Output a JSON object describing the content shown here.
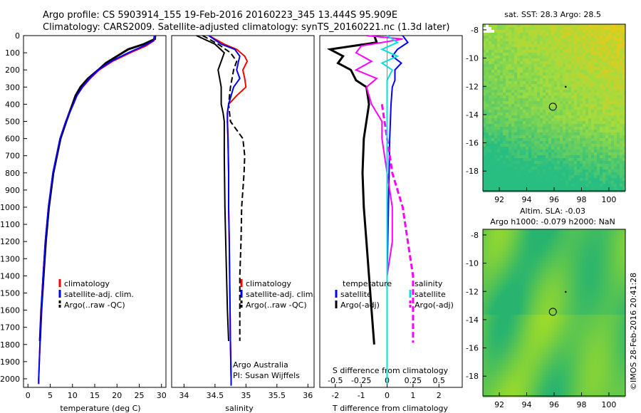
{
  "header": {
    "line1": "Argo profile: CS 5903914_155 19-Feb-2016 20160223_345 13.444S 95.909E",
    "line2": "Climatology: CARS2009. Satellite-adjusted climatology: synTS_20160221.nc (1.3d later)"
  },
  "depth_ticks": [
    "0",
    "100",
    "200",
    "300",
    "400",
    "500",
    "600",
    "700",
    "800",
    "900",
    "1000",
    "1100",
    "1200",
    "1300",
    "1400",
    "1500",
    "1600",
    "1700",
    "1800",
    "1900",
    "2000"
  ],
  "side_label": "©IMOS 28-Feb-2016 20:41:28",
  "panels": {
    "temperature": {
      "xlabel": "temperature (deg C)",
      "xticks": [
        "0",
        "5",
        "10",
        "15",
        "20",
        "25",
        "30"
      ],
      "legend": [
        "climatology",
        "satellite-adj. clim.",
        "Argo(..raw -QC)"
      ]
    },
    "salinity": {
      "xlabel": "salinity",
      "xticks": [
        "34",
        "34.5",
        "35",
        "35.5",
        "36"
      ],
      "legend": [
        "climatology",
        "satellite-adj. clim.",
        "Argo(..raw -QC)"
      ],
      "note1": "Argo Australia",
      "note2": "PI: Susan Wijffels"
    },
    "difference": {
      "xlabel": "T difference from climatology",
      "xlabel_top": "S difference from climatology",
      "xticks_T": [
        "-2",
        "-1",
        "0",
        "1",
        "2"
      ],
      "xticks_S": [
        "-0.5",
        "-0.25",
        "0",
        "0.25",
        "0.5"
      ],
      "legend_T_title": "temperature",
      "legend_S_title": "salinity",
      "legend_T": [
        "satellite",
        "Argo(-adj)"
      ],
      "legend_S": [
        "satellite",
        "Argo(-adj)"
      ]
    },
    "sst_map": {
      "title": "sat. SST: 28.3  Argo: 28.5",
      "yticks": [
        "-8",
        "-10",
        "-12",
        "-14",
        "-16",
        "-18"
      ],
      "xticks": [
        "92",
        "94",
        "96",
        "98",
        "100"
      ]
    },
    "sla_map": {
      "title1": "Altim. SLA: -0.03",
      "title2": "Argo h1000: -0.079 h2000: NaN",
      "yticks": [
        "-8",
        "-10",
        "-12",
        "-14",
        "-16",
        "-18"
      ],
      "xticks": [
        "92",
        "94",
        "96",
        "98",
        "100"
      ]
    }
  },
  "colors": {
    "climatology": "#ff0000",
    "satellite": "#0000ff",
    "argo": "#000000",
    "sat_diff_S": "#00e0e0",
    "argo_diff_S": "#ff00ff"
  },
  "chart_data": {
    "type": "line",
    "y_axis": {
      "label": "",
      "range": [
        0,
        2050
      ],
      "inverted": true
    },
    "profiles": {
      "temperature": {
        "xlim": [
          -1,
          31
        ],
        "climatology": {
          "depth": [
            0,
            30,
            60,
            100,
            150,
            200,
            250,
            300,
            350,
            400,
            500,
            600,
            800,
            1000,
            1200,
            1400,
            1600,
            1800,
            2000,
            2030
          ],
          "value": [
            28.5,
            28.3,
            26.5,
            23,
            19,
            16,
            14,
            12.3,
            11,
            10.2,
            8.5,
            7.2,
            5.6,
            4.6,
            3.9,
            3.4,
            3.0,
            2.7,
            2.4,
            2.4
          ]
        },
        "satellite": {
          "depth": [
            0,
            30,
            60,
            100,
            150,
            200,
            250,
            300,
            350,
            400,
            500,
            600,
            800,
            1000,
            1200,
            1400,
            1600,
            1800,
            2000,
            2030
          ],
          "value": [
            28.4,
            28.2,
            26,
            22.5,
            18.7,
            15.8,
            13.8,
            12.2,
            11,
            10.2,
            8.5,
            7.2,
            5.6,
            4.6,
            3.9,
            3.4,
            3.0,
            2.7,
            2.4,
            2.4
          ]
        },
        "argo": {
          "depth": [
            0,
            20,
            50,
            80,
            120,
            160,
            200,
            250,
            300,
            350,
            400,
            500,
            600,
            800,
            1000,
            1200,
            1400,
            1600,
            1780
          ],
          "value": [
            28.6,
            28.5,
            26,
            22.5,
            20,
            17.5,
            15.8,
            13.5,
            11.8,
            10.7,
            10,
            8.6,
            7.3,
            5.7,
            4.7,
            4.0,
            3.5,
            3.0,
            2.7
          ]
        }
      },
      "salinity": {
        "xlim": [
          33.8,
          36.1
        ],
        "climatology": {
          "depth": [
            0,
            50,
            80,
            120,
            150,
            200,
            250,
            300,
            350,
            400,
            450,
            500,
            600,
            800,
            1000,
            1200,
            1500,
            1800,
            2000,
            2040
          ],
          "value": [
            34.4,
            34.65,
            34.85,
            34.98,
            35.02,
            34.95,
            34.98,
            35.0,
            34.85,
            34.72,
            34.7,
            34.7,
            34.71,
            34.72,
            34.72,
            34.73,
            34.74,
            34.75,
            34.76,
            34.76
          ]
        },
        "satellite": {
          "depth": [
            0,
            50,
            80,
            120,
            150,
            200,
            250,
            300,
            350,
            400,
            450,
            500,
            600,
            800,
            1000,
            1200,
            1500,
            1800,
            2000,
            2040
          ],
          "value": [
            34.4,
            34.6,
            34.82,
            34.9,
            34.88,
            34.85,
            34.9,
            34.8,
            34.76,
            34.72,
            34.7,
            34.7,
            34.71,
            34.72,
            34.72,
            34.73,
            34.74,
            34.75,
            34.76,
            34.76
          ]
        },
        "argo_dashed": {
          "depth": [
            0,
            50,
            100,
            150,
            200,
            300,
            400,
            500,
            600,
            700,
            800,
            1000,
            1200,
            1400,
            1600,
            1780
          ],
          "value": [
            34.3,
            34.55,
            34.75,
            34.85,
            34.8,
            34.75,
            34.72,
            34.75,
            34.95,
            34.98,
            34.97,
            34.93,
            34.92,
            34.9,
            34.9,
            34.9
          ]
        },
        "argo_solid": {
          "depth": [
            0,
            50,
            100,
            150,
            200,
            300,
            400,
            450,
            500,
            700,
            1000,
            1300,
            1600,
            1780
          ],
          "value": [
            34.2,
            34.5,
            34.65,
            34.6,
            34.55,
            34.6,
            34.6,
            34.63,
            34.65,
            34.65,
            34.66,
            34.68,
            34.7,
            34.72
          ]
        }
      },
      "difference": {
        "xlim_T": [
          -2.6,
          2.9
        ],
        "xlim_S": [
          -0.65,
          0.725
        ],
        "sat_T": {
          "depth": [
            0,
            40,
            80,
            120,
            160,
            200,
            260,
            300,
            400,
            600,
            1000,
            1400,
            1800,
            2030
          ],
          "value": [
            0.6,
            0.8,
            0.4,
            0.2,
            0.55,
            0.3,
            0.3,
            0.2,
            0.15,
            0.1,
            0.05,
            0.0,
            0.0,
            0.0
          ]
        },
        "argo_T": {
          "depth": [
            0,
            40,
            80,
            120,
            160,
            200,
            260,
            300,
            400,
            600,
            800,
            1000,
            1200,
            1400,
            1600,
            1800
          ],
          "value": [
            -0.5,
            -0.4,
            -2.2,
            -1.7,
            -1.9,
            -1.4,
            -1.2,
            -0.8,
            -0.7,
            -0.9,
            -0.95,
            -0.9,
            -0.8,
            -0.7,
            -0.6,
            -0.5
          ]
        },
        "sat_S": {
          "depth": [
            0,
            40,
            80,
            120,
            160,
            200,
            260,
            300,
            400,
            600,
            1000,
            1400,
            1800,
            2030
          ],
          "value": [
            0.0,
            0.1,
            -0.05,
            0.1,
            -0.05,
            0.05,
            0.0,
            0.0,
            0.0,
            0.0,
            0.0,
            0.0,
            0.0,
            0.0
          ]
        },
        "argo_S_solid": {
          "depth": [
            0,
            20,
            60,
            100,
            150,
            200,
            250,
            300,
            400,
            500,
            600,
            800,
            1000,
            1200,
            1400,
            1600,
            1790
          ],
          "value": [
            -0.2,
            0.15,
            -0.25,
            -0.3,
            -0.15,
            -0.3,
            -0.1,
            -0.2,
            -0.15,
            -0.05,
            -0.05,
            0.0,
            0.05,
            0.05,
            0.0,
            0.0,
            0.0
          ]
        },
        "argo_S_dashed": {
          "depth": [
            400,
            600,
            800,
            1000,
            1200,
            1400,
            1600,
            1790
          ],
          "value": [
            -0.05,
            0.0,
            0.05,
            0.15,
            0.2,
            0.25,
            0.25,
            0.25
          ]
        }
      }
    },
    "maps": {
      "sst": {
        "lon_range": [
          90.8,
          101.2
        ],
        "lat_range": [
          -19.4,
          -7.6
        ],
        "argo_position": [
          95.909,
          -13.444
        ]
      },
      "sla": {
        "lon_range": [
          90.8,
          101.2
        ],
        "lat_range": [
          -19.4,
          -7.6
        ],
        "argo_position": [
          95.909,
          -13.444
        ]
      }
    }
  }
}
